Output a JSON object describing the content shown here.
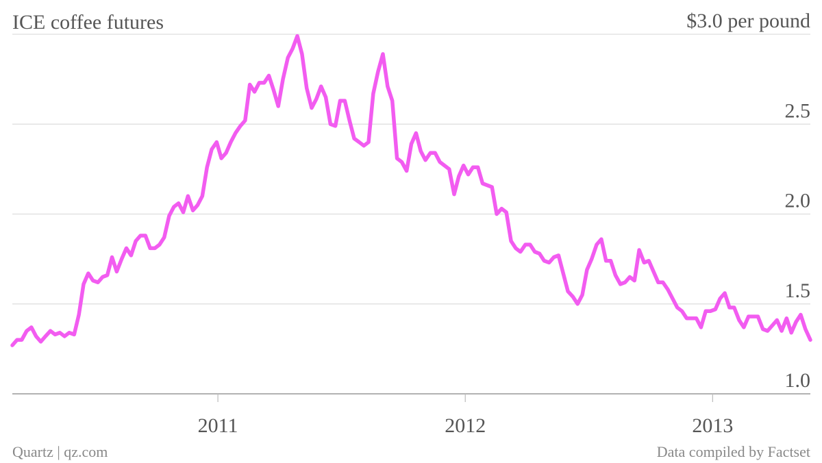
{
  "chart_data": {
    "type": "line",
    "title": "ICE coffee futures",
    "source": "Quartz | qz.com",
    "note": "Data compiled by Factset",
    "color": "#f25cf0",
    "grid": true,
    "xlim": [
      2010.169,
      2013.395
    ],
    "xticks": [
      2011,
      2012,
      2013
    ],
    "ylim": [
      1,
      3
    ],
    "yticks": [
      {
        "value": 1,
        "label": "1.0"
      },
      1.5,
      {
        "value": 2,
        "label": "2.0"
      },
      2.5,
      {
        "value": 3,
        "label": "$3.0 per pound"
      }
    ],
    "x": [
      2010.169,
      2010.188,
      2010.207,
      2010.227,
      2010.246,
      2010.265,
      2010.284,
      2010.303,
      2010.323,
      2010.342,
      2010.361,
      2010.38,
      2010.399,
      2010.419,
      2010.438,
      2010.457,
      2010.476,
      2010.495,
      2010.515,
      2010.534,
      2010.553,
      2010.572,
      2010.591,
      2010.611,
      2010.63,
      2010.649,
      2010.668,
      2010.687,
      2010.707,
      2010.726,
      2010.745,
      2010.764,
      2010.783,
      2010.803,
      2010.822,
      2010.841,
      2010.86,
      2010.879,
      2010.899,
      2010.918,
      2010.937,
      2010.956,
      2010.975,
      2010.995,
      2011.014,
      2011.033,
      2011.052,
      2011.071,
      2011.091,
      2011.11,
      2011.129,
      2011.148,
      2011.167,
      2011.187,
      2011.206,
      2011.225,
      2011.244,
      2011.263,
      2011.283,
      2011.302,
      2011.321,
      2011.34,
      2011.359,
      2011.379,
      2011.398,
      2011.417,
      2011.436,
      2011.455,
      2011.475,
      2011.494,
      2011.513,
      2011.532,
      2011.551,
      2011.571,
      2011.59,
      2011.609,
      2011.628,
      2011.647,
      2011.667,
      2011.686,
      2011.705,
      2011.724,
      2011.743,
      2011.763,
      2011.782,
      2011.801,
      2011.82,
      2011.839,
      2011.859,
      2011.878,
      2011.897,
      2011.916,
      2011.935,
      2011.955,
      2011.974,
      2011.993,
      2012.012,
      2012.031,
      2012.051,
      2012.07,
      2012.089,
      2012.108,
      2012.127,
      2012.147,
      2012.166,
      2012.185,
      2012.204,
      2012.223,
      2012.243,
      2012.262,
      2012.281,
      2012.3,
      2012.319,
      2012.339,
      2012.358,
      2012.377,
      2012.396,
      2012.415,
      2012.435,
      2012.454,
      2012.473,
      2012.492,
      2012.511,
      2012.531,
      2012.55,
      2012.569,
      2012.588,
      2012.607,
      2012.627,
      2012.646,
      2012.665,
      2012.684,
      2012.703,
      2012.723,
      2012.742,
      2012.761,
      2012.78,
      2012.799,
      2012.819,
      2012.838,
      2012.857,
      2012.876,
      2012.895,
      2012.915,
      2012.934,
      2012.953,
      2012.972,
      2012.991,
      2013.011,
      2013.03,
      2013.049,
      2013.068,
      2013.087,
      2013.107,
      2013.126,
      2013.145,
      2013.164,
      2013.183,
      2013.203,
      2013.222,
      2013.241,
      2013.26,
      2013.279,
      2013.299,
      2013.318,
      2013.337,
      2013.356,
      2013.375,
      2013.395
    ],
    "values": [
      1.27,
      1.3,
      1.3,
      1.35,
      1.37,
      1.32,
      1.29,
      1.32,
      1.35,
      1.33,
      1.34,
      1.32,
      1.34,
      1.33,
      1.44,
      1.61,
      1.67,
      1.63,
      1.62,
      1.65,
      1.66,
      1.76,
      1.68,
      1.75,
      1.81,
      1.77,
      1.85,
      1.88,
      1.88,
      1.81,
      1.81,
      1.83,
      1.87,
      1.99,
      2.04,
      2.06,
      2.01,
      2.1,
      2.02,
      2.05,
      2.1,
      2.26,
      2.36,
      2.4,
      2.31,
      2.34,
      2.4,
      2.45,
      2.49,
      2.52,
      2.72,
      2.68,
      2.73,
      2.73,
      2.77,
      2.69,
      2.6,
      2.75,
      2.87,
      2.92,
      2.99,
      2.89,
      2.7,
      2.59,
      2.64,
      2.71,
      2.65,
      2.5,
      2.49,
      2.63,
      2.63,
      2.52,
      2.42,
      2.4,
      2.38,
      2.4,
      2.67,
      2.79,
      2.89,
      2.71,
      2.63,
      2.31,
      2.29,
      2.24,
      2.39,
      2.45,
      2.35,
      2.3,
      2.34,
      2.34,
      2.29,
      2.27,
      2.25,
      2.11,
      2.21,
      2.27,
      2.22,
      2.26,
      2.26,
      2.17,
      2.16,
      2.15,
      2.0,
      2.03,
      2.01,
      1.85,
      1.81,
      1.79,
      1.83,
      1.83,
      1.79,
      1.78,
      1.74,
      1.73,
      1.76,
      1.77,
      1.67,
      1.57,
      1.54,
      1.5,
      1.55,
      1.69,
      1.75,
      1.83,
      1.86,
      1.74,
      1.74,
      1.66,
      1.61,
      1.62,
      1.65,
      1.63,
      1.8,
      1.73,
      1.74,
      1.68,
      1.62,
      1.62,
      1.58,
      1.53,
      1.48,
      1.46,
      1.42,
      1.42,
      1.42,
      1.37,
      1.46,
      1.46,
      1.47,
      1.53,
      1.56,
      1.48,
      1.48,
      1.41,
      1.37,
      1.43,
      1.43,
      1.43,
      1.36,
      1.35,
      1.38,
      1.41,
      1.35,
      1.42,
      1.34,
      1.4,
      1.44,
      1.36,
      1.3
    ]
  }
}
